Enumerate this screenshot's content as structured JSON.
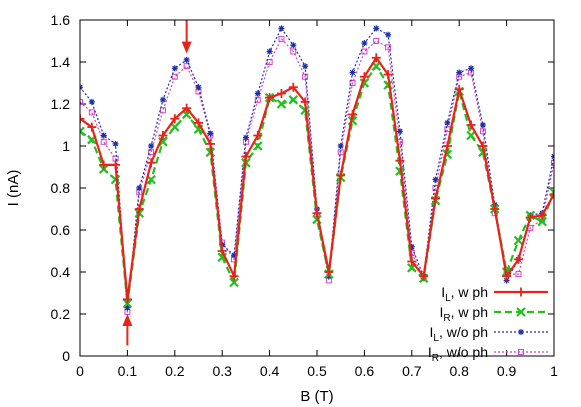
{
  "chart_data": {
    "type": "line",
    "xlabel": "B (T)",
    "ylabel": "I (nA)",
    "xlim": [
      0,
      1
    ],
    "ylim": [
      0,
      1.6
    ],
    "xticks": [
      "0",
      "0.1",
      "0.2",
      "0.3",
      "0.4",
      "0.5",
      "0.6",
      "0.7",
      "0.8",
      "0.9",
      "1"
    ],
    "yticks": [
      "0",
      "0.2",
      "0.4",
      "0.6",
      "0.8",
      "1",
      "1.2",
      "1.4",
      "1.6"
    ],
    "grid": false,
    "legend_position": "bottom-right",
    "annotations": [
      {
        "type": "arrow-down",
        "x": 0.225,
        "y_top": 1.6,
        "y_tip": 1.44,
        "color": "#e8231a"
      },
      {
        "type": "arrow-up",
        "x": 0.1,
        "y_bottom": 0.05,
        "y_tip": 0.2,
        "color": "#e8231a"
      }
    ],
    "x": [
      0,
      0.025,
      0.05,
      0.075,
      0.1,
      0.125,
      0.15,
      0.175,
      0.2,
      0.225,
      0.25,
      0.275,
      0.3,
      0.325,
      0.35,
      0.375,
      0.4,
      0.425,
      0.45,
      0.475,
      0.5,
      0.525,
      0.55,
      0.575,
      0.6,
      0.625,
      0.65,
      0.675,
      0.7,
      0.725,
      0.75,
      0.775,
      0.8,
      0.825,
      0.85,
      0.875,
      0.9,
      0.925,
      0.95,
      0.975,
      1.0
    ],
    "series": [
      {
        "label_main": "I",
        "label_sub": "L",
        "label_rest": ", w ph",
        "color": "#e8231a",
        "style": "solid",
        "marker": "plus",
        "width": 2.2,
        "values": [
          1.13,
          1.09,
          0.91,
          0.91,
          0.27,
          0.7,
          0.92,
          1.05,
          1.13,
          1.18,
          1.11,
          1.01,
          0.5,
          0.38,
          0.95,
          1.05,
          1.23,
          1.25,
          1.28,
          1.21,
          0.68,
          0.4,
          0.86,
          1.15,
          1.33,
          1.42,
          1.34,
          0.93,
          0.45,
          0.38,
          0.75,
          1.0,
          1.27,
          1.1,
          1.0,
          0.7,
          0.38,
          0.46,
          0.66,
          0.67,
          0.77
        ]
      },
      {
        "label_main": "I",
        "label_sub": "R",
        "label_rest": ", w ph",
        "color": "#22c01e",
        "style": "dashed",
        "marker": "x",
        "width": 2.2,
        "values": [
          1.07,
          1.03,
          0.89,
          0.84,
          0.25,
          0.68,
          0.84,
          1.02,
          1.09,
          1.15,
          1.08,
          0.97,
          0.47,
          0.35,
          0.92,
          1.0,
          1.23,
          1.2,
          1.22,
          1.17,
          0.65,
          0.39,
          0.85,
          1.12,
          1.3,
          1.38,
          1.29,
          0.88,
          0.42,
          0.37,
          0.74,
          0.96,
          1.26,
          1.05,
          0.97,
          0.7,
          0.4,
          0.55,
          0.67,
          0.64,
          0.78
        ]
      },
      {
        "label_main": "I",
        "label_sub": "L",
        "label_rest": ", w/o ph",
        "color": "#1c2fa8",
        "style": "dotted",
        "marker": "star",
        "width": 1.2,
        "values": [
          1.28,
          1.21,
          1.05,
          1.01,
          0.23,
          0.8,
          1.0,
          1.22,
          1.37,
          1.41,
          1.28,
          1.06,
          0.53,
          0.48,
          1.04,
          1.25,
          1.45,
          1.56,
          1.48,
          1.38,
          0.7,
          0.38,
          1.0,
          1.35,
          1.49,
          1.56,
          1.53,
          1.07,
          0.52,
          0.38,
          0.84,
          1.11,
          1.35,
          1.37,
          1.1,
          0.72,
          0.36,
          0.46,
          0.67,
          0.68,
          0.95
        ]
      },
      {
        "label_main": "I",
        "label_sub": "R",
        "label_rest": ", w/o ph",
        "color": "#d243c6",
        "style": "dotted",
        "marker": "square",
        "width": 1.2,
        "values": [
          1.21,
          1.16,
          1.02,
          0.94,
          0.21,
          0.78,
          0.97,
          1.17,
          1.33,
          1.38,
          1.26,
          1.05,
          0.54,
          0.46,
          1.02,
          1.22,
          1.4,
          1.51,
          1.45,
          1.33,
          0.67,
          0.36,
          0.97,
          1.3,
          1.45,
          1.5,
          1.47,
          1.02,
          0.49,
          0.37,
          0.8,
          1.08,
          1.33,
          1.35,
          1.07,
          0.68,
          0.39,
          0.39,
          0.61,
          0.65,
          0.92
        ]
      }
    ]
  }
}
